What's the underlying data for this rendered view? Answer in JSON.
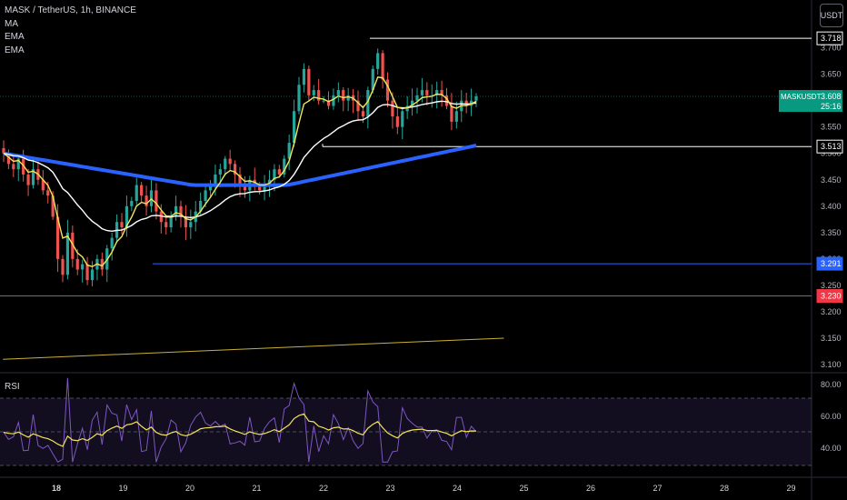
{
  "header": {
    "symbol_line": "MASK / TetherUS, 1h, BINANCE",
    "indicators": [
      "MA",
      "EMA",
      "EMA"
    ],
    "currency_button": "USDT"
  },
  "rsi_pane": {
    "label": "RSI"
  },
  "price_tag": {
    "label": "MASKUSDT",
    "price": "3.608",
    "countdown": "25:16"
  },
  "colors": {
    "up": "#26a69a",
    "down": "#ef5350",
    "ema_fast": "#f3e45a",
    "ema_slow": "#ffffff",
    "ma_long": "#2962ff",
    "level_blue": "#2962ff",
    "level_red": "#f23645",
    "trendline": "#c9b037",
    "rsi_line": "#7e57c2",
    "rsi_ma": "#f3e45a",
    "current": "#089981"
  },
  "chart_data": [
    {
      "type": "candlestick",
      "title": "MASK / TetherUS, 1h, BINANCE",
      "ylim": [
        3.08,
        3.76
      ],
      "y_ticks": [
        "3.700",
        "3.650",
        "3.600",
        "3.550",
        "3.500",
        "3.450",
        "3.400",
        "3.350",
        "3.300",
        "3.250",
        "3.200",
        "3.150",
        "3.100"
      ],
      "x_ticks": [
        "18",
        "19",
        "20",
        "21",
        "22",
        "23",
        "24",
        "25",
        "26",
        "27",
        "28",
        "29"
      ],
      "levels": [
        {
          "value": 3.718,
          "label": "3.718",
          "color": "#ffffff"
        },
        {
          "value": 3.513,
          "label": "3.513",
          "color": "#ffffff"
        },
        {
          "value": 3.291,
          "label": "3.291",
          "color": "#2962ff"
        },
        {
          "value": 3.23,
          "label": "3.230",
          "color": "#f23645"
        }
      ],
      "trendline": {
        "from": {
          "day": 17.2,
          "price": 3.11
        },
        "to": {
          "day": 24.7,
          "price": 3.15
        }
      },
      "closes": [
        3.5,
        3.48,
        3.47,
        3.49,
        3.46,
        3.44,
        3.47,
        3.45,
        3.43,
        3.42,
        3.38,
        3.3,
        3.27,
        3.35,
        3.3,
        3.28,
        3.29,
        3.26,
        3.28,
        3.3,
        3.28,
        3.32,
        3.34,
        3.37,
        3.36,
        3.4,
        3.41,
        3.44,
        3.42,
        3.4,
        3.43,
        3.39,
        3.37,
        3.36,
        3.38,
        3.4,
        3.38,
        3.36,
        3.37,
        3.39,
        3.41,
        3.43,
        3.44,
        3.46,
        3.47,
        3.49,
        3.48,
        3.46,
        3.44,
        3.43,
        3.45,
        3.44,
        3.43,
        3.44,
        3.45,
        3.47,
        3.46,
        3.49,
        3.52,
        3.58,
        3.63,
        3.66,
        3.61,
        3.62,
        3.6,
        3.6,
        3.59,
        3.61,
        3.62,
        3.6,
        3.61,
        3.6,
        3.58,
        3.57,
        3.62,
        3.66,
        3.69,
        3.64,
        3.6,
        3.57,
        3.55,
        3.58,
        3.59,
        3.6,
        3.61,
        3.62,
        3.61,
        3.61,
        3.62,
        3.61,
        3.59,
        3.56,
        3.58,
        3.6,
        3.59,
        3.6,
        3.608
      ]
    },
    {
      "type": "line",
      "title": "RSI",
      "ylim": [
        30,
        85
      ],
      "y_ticks": [
        "80.00",
        "60.00",
        "40.00"
      ],
      "bands": [
        70,
        50,
        30
      ]
    }
  ]
}
